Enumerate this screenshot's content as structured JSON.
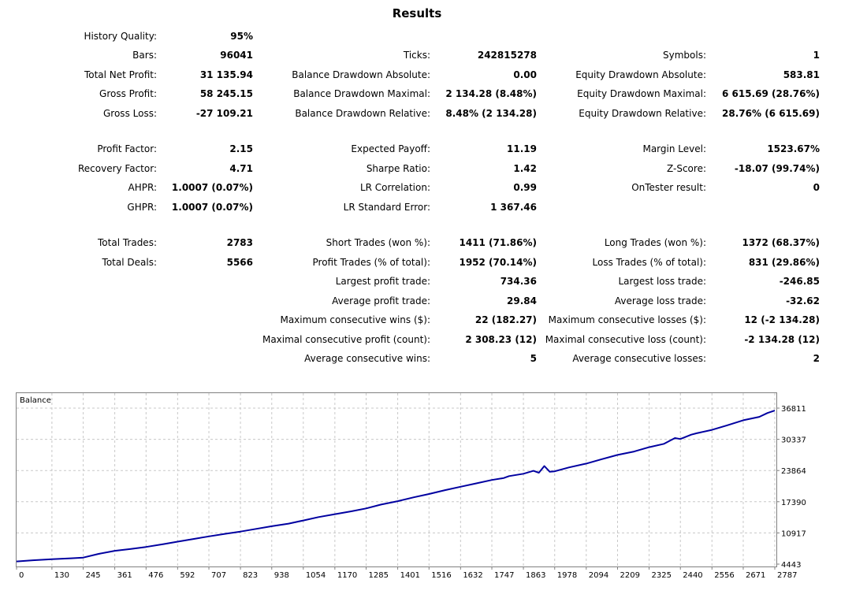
{
  "title": "Results",
  "stats": {
    "history_quality": {
      "label": "History Quality:",
      "value": "95%"
    },
    "bars": {
      "label": "Bars:",
      "value": "96041"
    },
    "ticks": {
      "label": "Ticks:",
      "value": "242815278"
    },
    "symbols": {
      "label": "Symbols:",
      "value": "1"
    },
    "total_net_profit": {
      "label": "Total Net Profit:",
      "value": "31 135.94"
    },
    "balance_dd_absolute": {
      "label": "Balance Drawdown Absolute:",
      "value": "0.00"
    },
    "equity_dd_absolute": {
      "label": "Equity Drawdown Absolute:",
      "value": "583.81"
    },
    "gross_profit": {
      "label": "Gross Profit:",
      "value": "58 245.15"
    },
    "balance_dd_maximal": {
      "label": "Balance Drawdown Maximal:",
      "value": "2 134.28 (8.48%)"
    },
    "equity_dd_maximal": {
      "label": "Equity Drawdown Maximal:",
      "value": "6 615.69 (28.76%)"
    },
    "gross_loss": {
      "label": "Gross Loss:",
      "value": "-27 109.21"
    },
    "balance_dd_relative": {
      "label": "Balance Drawdown Relative:",
      "value": "8.48% (2 134.28)"
    },
    "equity_dd_relative": {
      "label": "Equity Drawdown Relative:",
      "value": "28.76% (6 615.69)"
    },
    "profit_factor": {
      "label": "Profit Factor:",
      "value": "2.15"
    },
    "expected_payoff": {
      "label": "Expected Payoff:",
      "value": "11.19"
    },
    "margin_level": {
      "label": "Margin Level:",
      "value": "1523.67%"
    },
    "recovery_factor": {
      "label": "Recovery Factor:",
      "value": "4.71"
    },
    "sharpe_ratio": {
      "label": "Sharpe Ratio:",
      "value": "1.42"
    },
    "z_score": {
      "label": "Z-Score:",
      "value": "-18.07 (99.74%)"
    },
    "ahpr": {
      "label": "AHPR:",
      "value": "1.0007 (0.07%)"
    },
    "lr_correlation": {
      "label": "LR Correlation:",
      "value": "0.99"
    },
    "ontester_result": {
      "label": "OnTester result:",
      "value": "0"
    },
    "ghpr": {
      "label": "GHPR:",
      "value": "1.0007 (0.07%)"
    },
    "lr_standard_error": {
      "label": "LR Standard Error:",
      "value": "1 367.46"
    },
    "total_trades": {
      "label": "Total Trades:",
      "value": "2783"
    },
    "short_trades": {
      "label": "Short Trades (won %):",
      "value": "1411 (71.86%)"
    },
    "long_trades": {
      "label": "Long Trades (won %):",
      "value": "1372 (68.37%)"
    },
    "total_deals": {
      "label": "Total Deals:",
      "value": "5566"
    },
    "profit_trades": {
      "label": "Profit Trades (% of total):",
      "value": "1952 (70.14%)"
    },
    "loss_trades": {
      "label": "Loss Trades (% of total):",
      "value": "831 (29.86%)"
    },
    "largest_profit_trade": {
      "label": "Largest profit trade:",
      "value": "734.36"
    },
    "largest_loss_trade": {
      "label": "Largest loss trade:",
      "value": "-246.85"
    },
    "average_profit_trade": {
      "label": "Average profit trade:",
      "value": "29.84"
    },
    "average_loss_trade": {
      "label": "Average loss trade:",
      "value": "-32.62"
    },
    "max_consecutive_wins": {
      "label": "Maximum consecutive wins ($):",
      "value": "22 (182.27)"
    },
    "max_consecutive_losses": {
      "label": "Maximum consecutive losses ($):",
      "value": "12 (-2 134.28)"
    },
    "maximal_consecutive_profit": {
      "label": "Maximal consecutive profit (count):",
      "value": "2 308.23 (12)"
    },
    "maximal_consecutive_loss": {
      "label": "Maximal consecutive loss (count):",
      "value": "-2 134.28 (12)"
    },
    "average_consecutive_wins": {
      "label": "Average consecutive wins:",
      "value": "5"
    },
    "average_consecutive_losses": {
      "label": "Average consecutive losses:",
      "value": "2"
    }
  },
  "chart_data": {
    "type": "line",
    "title": "",
    "legend": "Balance",
    "x_ticks": [
      0,
      130,
      245,
      361,
      476,
      592,
      707,
      823,
      938,
      1054,
      1170,
      1285,
      1401,
      1516,
      1632,
      1747,
      1863,
      1978,
      2094,
      2209,
      2325,
      2440,
      2556,
      2671,
      2787
    ],
    "y_ticks": [
      4443,
      10917,
      17390,
      23864,
      30337,
      36811
    ],
    "xlim": [
      0,
      2787
    ],
    "ylim": [
      4443,
      36811
    ],
    "grid": true,
    "line_color": "#0000A0",
    "series": [
      {
        "name": "Balance",
        "x": [
          0,
          60,
          130,
          200,
          245,
          300,
          361,
          420,
          476,
          540,
          592,
          650,
          707,
          770,
          823,
          880,
          938,
          1000,
          1054,
          1110,
          1170,
          1230,
          1285,
          1340,
          1401,
          1460,
          1516,
          1575,
          1632,
          1690,
          1747,
          1790,
          1810,
          1863,
          1900,
          1920,
          1940,
          1960,
          1978,
          2030,
          2094,
          2150,
          2209,
          2270,
          2325,
          2380,
          2420,
          2440,
          2480,
          2500,
          2556,
          2610,
          2671,
          2730,
          2760,
          2787
        ],
        "y": [
          5000,
          5250,
          5450,
          5650,
          5800,
          6550,
          7200,
          7600,
          8000,
          8600,
          9100,
          9650,
          10200,
          10750,
          11200,
          11750,
          12300,
          12850,
          13500,
          14200,
          14800,
          15400,
          16000,
          16800,
          17500,
          18300,
          19000,
          19800,
          20500,
          21200,
          21900,
          22300,
          22700,
          23200,
          23800,
          23400,
          24800,
          23600,
          23700,
          24500,
          25300,
          26200,
          27100,
          27800,
          28700,
          29400,
          30600,
          30400,
          31300,
          31600,
          32300,
          33200,
          34300,
          35000,
          35800,
          36300
        ]
      }
    ]
  }
}
